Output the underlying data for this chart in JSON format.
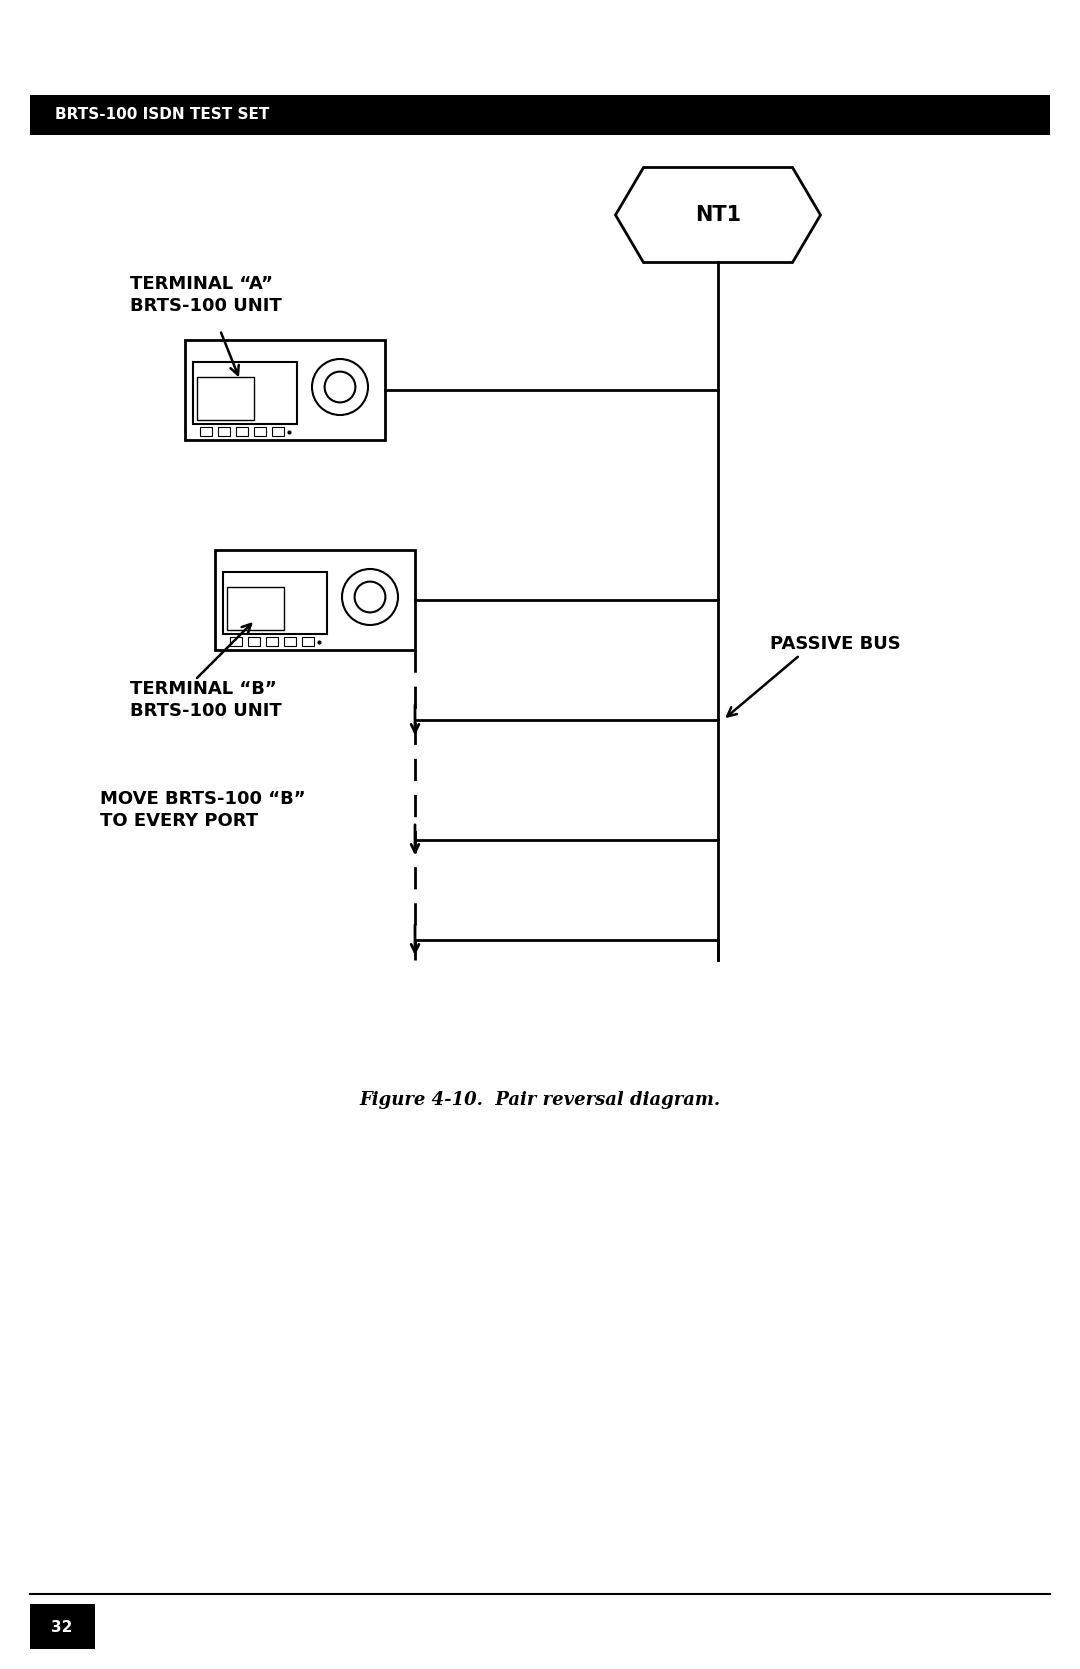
{
  "bg_color": "#ffffff",
  "header_color": "#000000",
  "header_text": "BRTS-100 ISDN TEST SET",
  "header_text_color": "#ffffff",
  "figure_caption": "Figure 4-10.  Pair reversal diagram.",
  "nt1_label": "NT1",
  "terminal_a_label": "TERMINAL “A”\nBRTS-100 UNIT",
  "terminal_b_label": "TERMINAL “B”\nBRTS-100 UNIT",
  "move_label": "MOVE BRTS-100 “B”\nTO EVERY PORT",
  "passive_bus_label": "PASSIVE BUS",
  "page_number": "32"
}
